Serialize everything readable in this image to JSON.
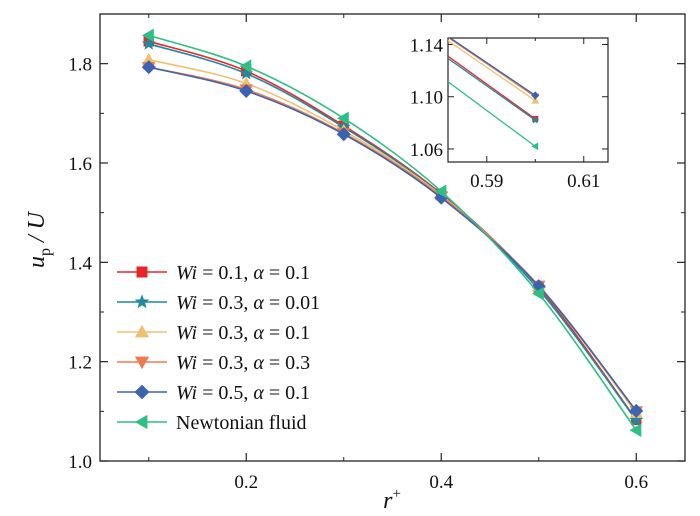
{
  "chart_data": {
    "type": "line",
    "xlabel_main": "r",
    "xlabel_sup": "+",
    "ylabel_main": "u",
    "ylabel_sub": "p",
    "ylabel_rest": " / U",
    "xlim": [
      0.05,
      0.65
    ],
    "ylim": [
      1.0,
      1.9
    ],
    "xticks": [
      0.2,
      0.4,
      0.6
    ],
    "yticks": [
      1.0,
      1.2,
      1.4,
      1.6,
      1.8
    ],
    "xtick_labels": [
      "0.2",
      "0.4",
      "0.6"
    ],
    "ytick_labels": [
      "1.0",
      "1.2",
      "1.4",
      "1.6",
      "1.8"
    ],
    "x": [
      0.1,
      0.2,
      0.3,
      0.4,
      0.5,
      0.6
    ],
    "series": [
      {
        "name": "Wi = 0.1, α = 0.1",
        "wi": "0.1",
        "alpha": "0.1",
        "color": "#e8262a",
        "marker": "square",
        "values": [
          1.845,
          1.785,
          1.675,
          1.538,
          1.35,
          1.083
        ]
      },
      {
        "name": "Wi = 0.3, α = 0.01",
        "wi": "0.3",
        "alpha": "0.01",
        "color": "#1f8a9e",
        "marker": "star",
        "values": [
          1.84,
          1.78,
          1.672,
          1.536,
          1.345,
          1.082
        ]
      },
      {
        "name": "Wi = 0.3, α = 0.1",
        "wi": "0.3",
        "alpha": "0.1",
        "color": "#f0c070",
        "marker": "triangle-up",
        "values": [
          1.808,
          1.76,
          1.665,
          1.535,
          1.352,
          1.097
        ]
      },
      {
        "name": "Wi = 0.3, α = 0.3",
        "wi": "0.3",
        "alpha": "0.3",
        "color": "#ee7b4d",
        "marker": "triangle-down",
        "values": [
          1.793,
          1.748,
          1.66,
          1.533,
          1.353,
          1.1
        ]
      },
      {
        "name": "Wi = 0.5, α = 0.1",
        "wi": "0.5",
        "alpha": "0.1",
        "color": "#3d62b0",
        "marker": "diamond",
        "values": [
          1.793,
          1.745,
          1.658,
          1.53,
          1.352,
          1.101
        ]
      },
      {
        "name": "Newtonian fluid",
        "color": "#2dbf85",
        "marker": "triangle-left",
        "values": [
          1.857,
          1.795,
          1.69,
          1.543,
          1.337,
          1.062
        ]
      }
    ],
    "legend": {
      "position": "lower-left",
      "wi_label": "Wi",
      "alpha_label": "α",
      "eq": " = ",
      "sep": ", "
    },
    "inset": {
      "xlim": [
        0.582,
        0.615
      ],
      "ylim": [
        1.05,
        1.145
      ],
      "xticks": [
        0.59,
        0.61
      ],
      "yticks": [
        1.06,
        1.1,
        1.14
      ],
      "xtick_labels": [
        "0.59",
        "0.61"
      ],
      "ytick_labels": [
        "1.06",
        "1.10",
        "1.14"
      ]
    }
  }
}
